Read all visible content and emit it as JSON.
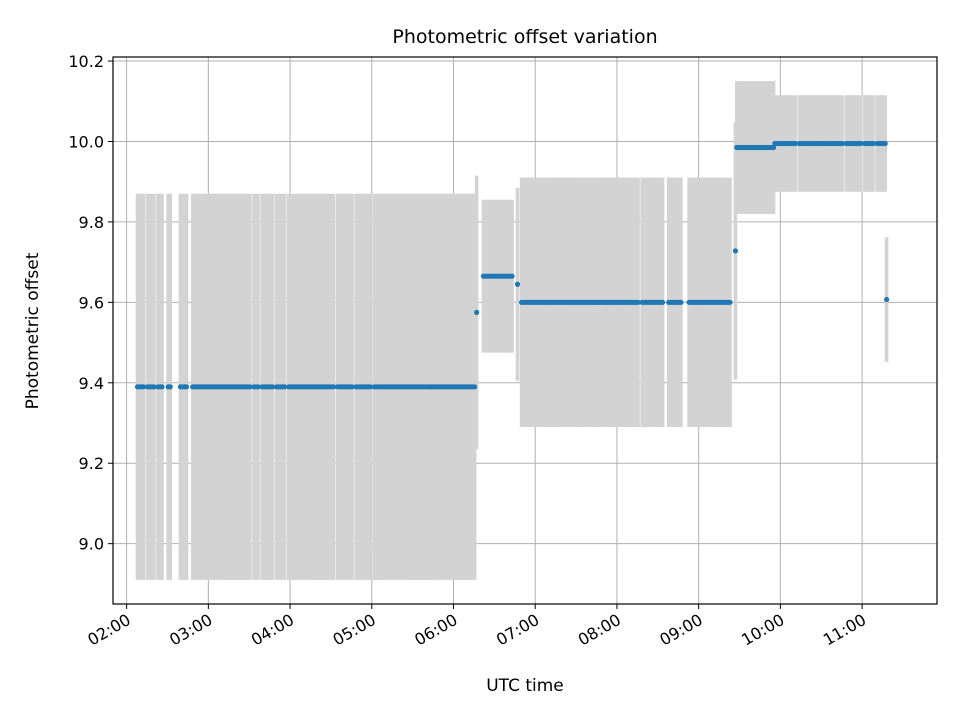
{
  "chart_data": {
    "type": "scatter",
    "title": "Photometric offset variation",
    "xlabel": "UTC time",
    "ylabel": "Photometric offset",
    "x_unit": "hours UTC",
    "xlim": [
      "01:50",
      "11:55"
    ],
    "ylim": [
      8.85,
      10.21
    ],
    "grid": true,
    "x_ticks": [
      "02:00",
      "03:00",
      "04:00",
      "05:00",
      "06:00",
      "07:00",
      "08:00",
      "09:00",
      "10:00",
      "11:00"
    ],
    "y_ticks": [
      "9.0",
      "9.2",
      "9.4",
      "9.6",
      "9.8",
      "10.0",
      "10.2"
    ],
    "colors": {
      "points": "#1f77b4",
      "errorbars": "#d3d3d3",
      "grid": "#b0b0b0"
    },
    "segments": [
      {
        "start": "02:08",
        "end": "06:16",
        "y": 9.39,
        "err": 0.48,
        "interval_min": 1.5,
        "gaps": [
          [
            "02:13",
            "02:15"
          ],
          [
            "02:20",
            "02:22"
          ],
          [
            "02:27",
            "02:29"
          ],
          [
            "02:32",
            "02:38"
          ],
          [
            "02:44",
            "02:48"
          ],
          [
            "03:31",
            "03:33"
          ],
          [
            "03:37",
            "03:39"
          ],
          [
            "03:47",
            "03:49"
          ],
          [
            "03:56",
            "03:58"
          ],
          [
            "04:33",
            "04:35"
          ],
          [
            "04:46",
            "04:48"
          ],
          [
            "05:00",
            "05:02"
          ]
        ],
        "points_hidden_in_gaps": false
      },
      {
        "start": "06:17",
        "end": "06:17",
        "y": 9.575,
        "err": 0.34,
        "single": true
      },
      {
        "start": "06:22",
        "end": "06:44",
        "y": 9.665,
        "err": 0.19,
        "interval_min": 1.5,
        "gaps": []
      },
      {
        "start": "06:47",
        "end": "06:47",
        "y": 9.645,
        "err": 0.24,
        "single": true
      },
      {
        "start": "06:50",
        "end": "09:23",
        "y": 9.6,
        "err": 0.31,
        "interval_min": 1.5,
        "gaps": [
          [
            "08:16",
            "08:18"
          ],
          [
            "08:35",
            "08:37"
          ],
          [
            "08:48",
            "08:52"
          ]
        ]
      },
      {
        "start": "09:27",
        "end": "09:27",
        "y": 9.728,
        "err": 0.32,
        "single": true
      },
      {
        "start": "09:28",
        "end": "09:55",
        "y": 9.985,
        "err": 0.165,
        "interval_min": 1.5,
        "gaps": []
      },
      {
        "start": "09:56",
        "end": "11:18",
        "y": 9.995,
        "err": 0.12,
        "interval_min": 1.5,
        "gaps": [
          [
            "10:12",
            "10:13"
          ],
          [
            "10:46",
            "10:48"
          ],
          [
            "11:00",
            "11:02"
          ],
          [
            "11:09",
            "11:11"
          ]
        ]
      },
      {
        "start": "11:18",
        "end": "11:18",
        "y": 9.607,
        "err": 0.155,
        "single": true
      }
    ]
  }
}
